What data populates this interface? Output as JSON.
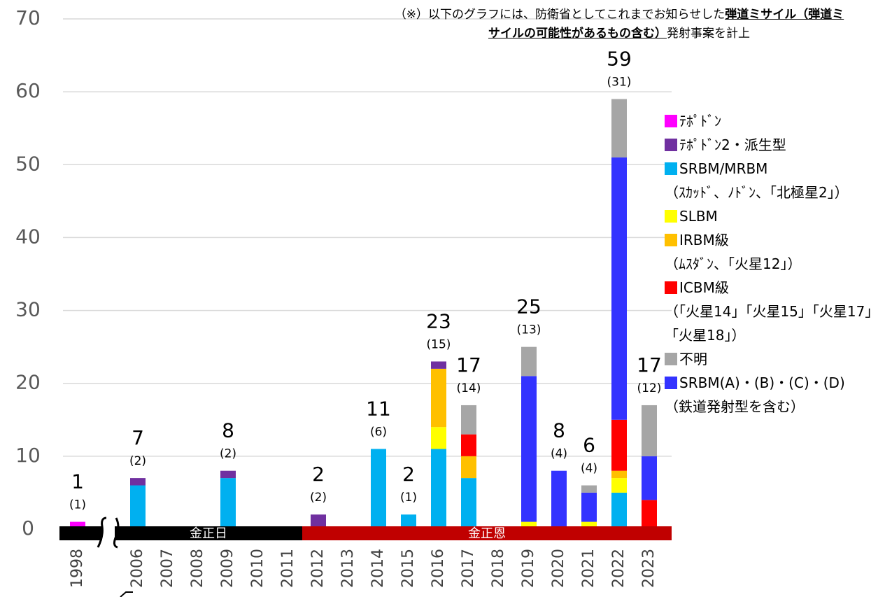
{
  "chart_data": {
    "type": "stacked_bar",
    "annotation": [
      "（※）以下のグラフには、防衛省としてこれまでお知らせした",
      "弾道ミサイル（弾道ミサイルの可能性があるもの含む）",
      "発射事案を計上"
    ],
    "categories": [
      "1998",
      null,
      "2006",
      "2007",
      "2008",
      "2009",
      "2010",
      "2011",
      "2012",
      "2013",
      "2014",
      "2015",
      "2016",
      "2017",
      "2018",
      "2019",
      "2020",
      "2021",
      "2022",
      "2023"
    ],
    "series": [
      {
        "name": "ﾃﾎﾟﾄﾞﾝ",
        "color": "#ff00ff",
        "values": [
          1,
          null,
          0,
          0,
          0,
          0,
          0,
          0,
          0,
          0,
          0,
          0,
          0,
          0,
          0,
          0,
          0,
          0,
          0,
          0
        ]
      },
      {
        "name": "ﾃﾎﾟﾄﾞﾝ2・派生型",
        "color": "#7030a0",
        "values": [
          0,
          null,
          1,
          0,
          0,
          1,
          0,
          0,
          2,
          0,
          0,
          0,
          1,
          0,
          0,
          0,
          0,
          0,
          0,
          0
        ]
      },
      {
        "name": "SRBM/MRBM",
        "note": "（ｽｶｯﾄﾞ、ﾉﾄﾞﾝ、「北極星2」）",
        "color": "#00b0f0",
        "values": [
          0,
          null,
          6,
          0,
          0,
          7,
          0,
          0,
          0,
          0,
          11,
          2,
          11,
          7,
          0,
          0,
          0,
          0,
          5,
          0
        ]
      },
      {
        "name": "SLBM",
        "color": "#ffff00",
        "values": [
          0,
          null,
          0,
          0,
          0,
          0,
          0,
          0,
          0,
          0,
          0,
          0,
          3,
          0,
          0,
          1,
          0,
          1,
          2,
          0
        ]
      },
      {
        "name": "IRBM級",
        "note": "（ﾑｽﾀﾞﾝ、「火星12」）",
        "color": "#ffc000",
        "values": [
          0,
          null,
          0,
          0,
          0,
          0,
          0,
          0,
          0,
          0,
          0,
          0,
          8,
          3,
          0,
          0,
          0,
          0,
          1,
          0
        ]
      },
      {
        "name": "ICBM級",
        "note": "（「火星14」「火星15」「火星17」「火星18」）",
        "color": "#ff0000",
        "values": [
          0,
          null,
          0,
          0,
          0,
          0,
          0,
          0,
          0,
          0,
          0,
          0,
          0,
          3,
          0,
          0,
          0,
          0,
          7,
          4
        ]
      },
      {
        "name": "不明",
        "color": "#a6a6a6",
        "values": [
          0,
          null,
          0,
          0,
          0,
          0,
          0,
          0,
          0,
          0,
          0,
          0,
          0,
          4,
          0,
          4,
          0,
          1,
          8,
          7
        ]
      },
      {
        "name": "SRBM(A)・(B)・(C)・(D)",
        "note": "（鉄道発射型を含む）",
        "color": "#3333ff",
        "values": [
          0,
          null,
          0,
          0,
          0,
          0,
          0,
          0,
          0,
          0,
          0,
          0,
          0,
          0,
          0,
          20,
          8,
          4,
          36,
          6
        ]
      }
    ],
    "totals": [
      1,
      null,
      7,
      null,
      null,
      8,
      null,
      null,
      2,
      null,
      11,
      2,
      23,
      17,
      null,
      25,
      8,
      6,
      59,
      17
    ],
    "events": [
      1,
      null,
      2,
      null,
      null,
      2,
      null,
      null,
      2,
      null,
      6,
      1,
      15,
      14,
      null,
      13,
      4,
      4,
      31,
      12
    ],
    "event_labels": [
      "(1)",
      null,
      "(2)",
      null,
      null,
      "(2)",
      null,
      null,
      "(2)",
      null,
      "(6)",
      "(1)",
      "(15)",
      "(14)",
      null,
      "(13)",
      "(4)",
      "(4)",
      "(31)",
      "(12)"
    ],
    "eras": [
      "金正日",
      "金正恩"
    ],
    "ylim": [
      0,
      70
    ],
    "yticks": [
      0,
      10,
      20,
      30,
      40,
      50,
      60,
      70
    ],
    "grid": true
  }
}
